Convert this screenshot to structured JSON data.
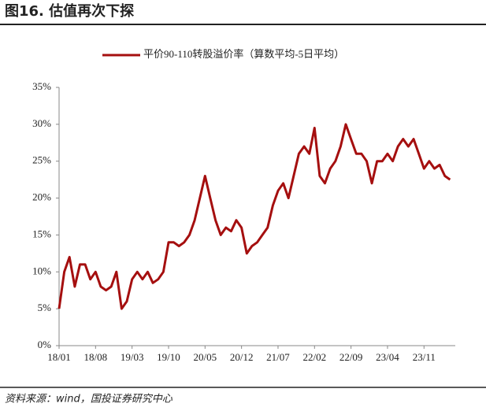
{
  "header": {
    "title": "图16. 估值再次下探"
  },
  "chart_data": {
    "type": "line",
    "categories": [
      "18/01",
      null,
      null,
      null,
      null,
      null,
      null,
      "18/08",
      null,
      null,
      null,
      null,
      null,
      null,
      "19/03",
      null,
      null,
      null,
      null,
      null,
      null,
      "19/10",
      null,
      null,
      null,
      null,
      null,
      null,
      "20/05",
      null,
      null,
      null,
      null,
      null,
      null,
      "20/12",
      null,
      null,
      null,
      null,
      null,
      null,
      "21/07",
      null,
      null,
      null,
      null,
      null,
      null,
      "22/02",
      null,
      null,
      null,
      null,
      null,
      null,
      "22/09",
      null,
      null,
      null,
      null,
      null,
      null,
      "23/04",
      null,
      null,
      null,
      null,
      null,
      null,
      "23/11",
      null,
      null,
      null,
      null,
      null
    ],
    "series": [
      {
        "name": "平价90-110转股溢价率（算数平均-5日平均）",
        "color": "#a50f0f",
        "values": [
          5,
          10,
          12,
          8,
          11,
          11,
          9,
          10,
          8,
          7.5,
          8,
          10,
          5,
          6,
          9,
          10,
          9,
          10,
          8.5,
          9,
          10,
          14,
          14,
          13.5,
          14,
          15,
          17,
          20,
          23,
          20,
          17,
          15,
          16,
          15.5,
          17,
          16,
          12.5,
          13.5,
          14,
          15,
          16,
          19,
          21,
          22,
          20,
          23,
          26,
          27,
          26,
          29.5,
          23,
          22,
          24,
          25,
          27,
          30,
          28,
          26,
          26,
          25,
          22,
          25,
          25,
          26,
          25,
          27,
          28,
          27,
          28,
          26,
          24,
          25,
          24,
          24.5,
          23,
          22.5
        ]
      }
    ],
    "ylim": [
      0,
      35
    ],
    "yticks": [
      {
        "value": 0,
        "label": "0%"
      },
      {
        "value": 5,
        "label": "5%"
      },
      {
        "value": 10,
        "label": "10%"
      },
      {
        "value": 15,
        "label": "15%"
      },
      {
        "value": 20,
        "label": "20%"
      },
      {
        "value": 25,
        "label": "25%"
      },
      {
        "value": 30,
        "label": "30%"
      },
      {
        "value": 35,
        "label": "35%"
      }
    ],
    "legend": "top"
  },
  "footer": {
    "source": "资料来源：wind，国投证券研究中心"
  }
}
